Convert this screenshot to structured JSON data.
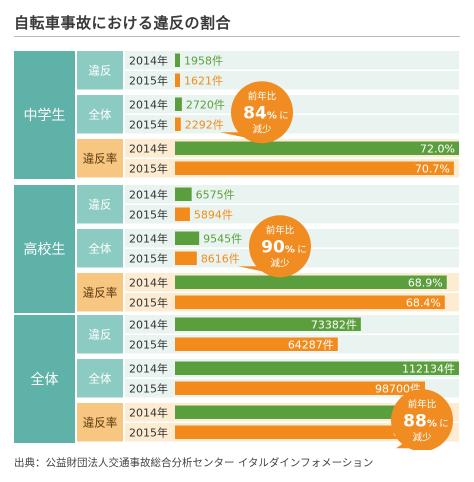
{
  "title": "自転車事故における違反の割合",
  "source": "出典：公益財団法人交通事故総合分析センター イタルダインフォメーション",
  "colors": {
    "green": "#5b9e3d",
    "orange": "#f28b1c",
    "groupBg": "#d9ece8",
    "groupLabel": "#5fb2a7",
    "metricBg": "#e9f4f1",
    "metricLabel": "#8ccbc2",
    "rateBg": "#fdecd2",
    "rateLabel": "#f7c680",
    "calloutBg": "#f08c21"
  },
  "chart_data": {
    "type": "bar",
    "groups": [
      {
        "name": "中学生",
        "metrics": [
          {
            "name": "違反",
            "kind": "count",
            "rows": [
              {
                "year": "2014年",
                "value": 1958,
                "label": "1958件"
              },
              {
                "year": "2015年",
                "value": 1621,
                "label": "1621件"
              }
            ]
          },
          {
            "name": "全体",
            "kind": "count",
            "rows": [
              {
                "year": "2014年",
                "value": 2720,
                "label": "2720件"
              },
              {
                "year": "2015年",
                "value": 2292,
                "label": "2292件"
              }
            ]
          },
          {
            "name": "違反率",
            "kind": "rate",
            "rows": [
              {
                "year": "2014年",
                "value": 72.0,
                "label": "72.0%"
              },
              {
                "year": "2015年",
                "value": 70.7,
                "label": "70.7%"
              }
            ]
          }
        ],
        "callout": {
          "line1": "前年比",
          "value": "84",
          "unit": "%",
          "suffix": "に",
          "line3": "減少"
        }
      },
      {
        "name": "高校生",
        "metrics": [
          {
            "name": "違反",
            "kind": "count",
            "rows": [
              {
                "year": "2014年",
                "value": 6575,
                "label": "6575件"
              },
              {
                "year": "2015年",
                "value": 5894,
                "label": "5894件"
              }
            ]
          },
          {
            "name": "全体",
            "kind": "count",
            "rows": [
              {
                "year": "2014年",
                "value": 9545,
                "label": "9545件"
              },
              {
                "year": "2015年",
                "value": 8616,
                "label": "8616件"
              }
            ]
          },
          {
            "name": "違反率",
            "kind": "rate",
            "rows": [
              {
                "year": "2014年",
                "value": 68.9,
                "label": "68.9%"
              },
              {
                "year": "2015年",
                "value": 68.4,
                "label": "68.4%"
              }
            ]
          }
        ],
        "callout": {
          "line1": "前年比",
          "value": "90",
          "unit": "%",
          "suffix": "に",
          "line3": "減少"
        }
      },
      {
        "name": "全体",
        "metrics": [
          {
            "name": "違反",
            "kind": "count",
            "rows": [
              {
                "year": "2014年",
                "value": 73382,
                "label": "73382件"
              },
              {
                "year": "2015年",
                "value": 64287,
                "label": "64287件"
              }
            ]
          },
          {
            "name": "全体",
            "kind": "count",
            "rows": [
              {
                "year": "2014年",
                "value": 112134,
                "label": "112134件"
              },
              {
                "year": "2015年",
                "value": 98700,
                "label": "98700件"
              }
            ]
          },
          {
            "name": "違反率",
            "kind": "rate",
            "rows": [
              {
                "year": "2014年",
                "value": 65.4,
                "label": "65.4%"
              },
              {
                "year": "2015年",
                "value": 65.1,
                "label": "65.1%"
              }
            ]
          }
        ],
        "callout": {
          "line1": "前年比",
          "value": "88",
          "unit": "%",
          "suffix": "に",
          "line3": "減少"
        }
      }
    ],
    "countMax": 112134,
    "rateMax": 72.0
  }
}
